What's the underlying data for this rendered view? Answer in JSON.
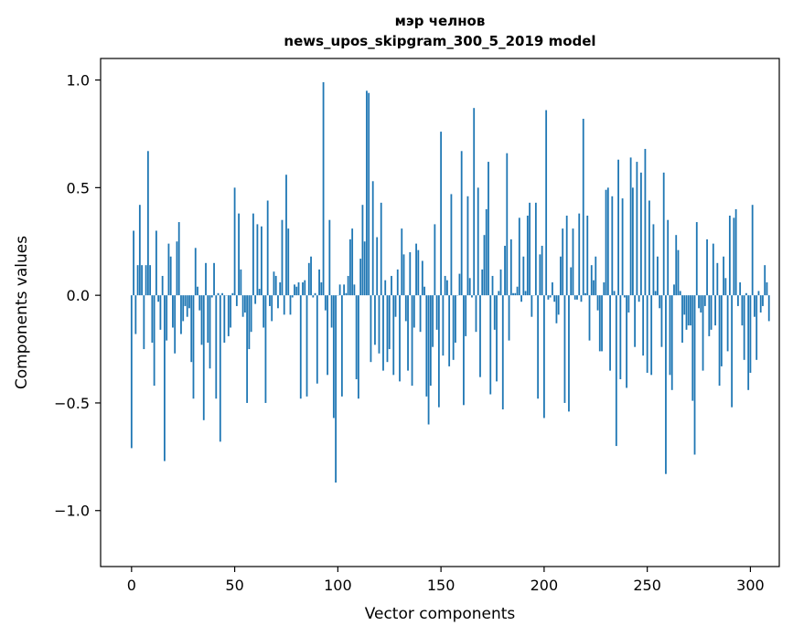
{
  "title": {
    "line1": "мэр челнов",
    "line2": "news_upos_skipgram_300_5_2019 model"
  },
  "chart_data": {
    "type": "bar",
    "xlabel": "Vector components",
    "ylabel": "Components values",
    "xlim": [
      -15,
      314
    ],
    "ylim": [
      -1.26,
      1.1
    ],
    "xticks": [
      0,
      50,
      100,
      150,
      200,
      250,
      300
    ],
    "yticks": [
      -1.0,
      -0.5,
      0.0,
      0.5,
      1.0
    ],
    "ytick_labels": [
      "−1.0",
      "−0.5",
      "0.0",
      "0.5",
      "1.0"
    ],
    "bar_color": "#1f77b4",
    "grid": false,
    "values": [
      -0.71,
      0.3,
      -0.18,
      0.14,
      0.42,
      0.14,
      -0.25,
      0.14,
      0.67,
      0.14,
      -0.22,
      -0.42,
      0.3,
      -0.03,
      -0.16,
      0.09,
      -0.77,
      -0.21,
      0.24,
      0.18,
      -0.15,
      -0.27,
      0.25,
      0.34,
      -0.18,
      -0.12,
      -0.05,
      -0.1,
      -0.06,
      -0.31,
      -0.48,
      0.22,
      0.04,
      -0.07,
      -0.23,
      -0.58,
      0.15,
      -0.22,
      -0.34,
      -0.01,
      0.15,
      -0.48,
      0.01,
      -0.68,
      0.01,
      -0.22,
      0.0,
      -0.19,
      -0.15,
      0.01,
      0.5,
      -0.05,
      0.38,
      0.12,
      -0.1,
      -0.08,
      -0.5,
      -0.25,
      -0.17,
      0.38,
      -0.04,
      0.33,
      0.03,
      0.32,
      -0.15,
      -0.5,
      0.44,
      -0.05,
      -0.12,
      0.11,
      0.09,
      -0.06,
      0.06,
      0.35,
      -0.09,
      0.56,
      0.31,
      -0.09,
      -0.01,
      0.05,
      0.04,
      0.06,
      -0.48,
      0.06,
      0.07,
      -0.47,
      0.15,
      0.18,
      -0.01,
      0.01,
      -0.41,
      0.12,
      0.06,
      0.99,
      -0.07,
      -0.37,
      0.35,
      -0.15,
      -0.57,
      -0.87,
      0.0,
      0.05,
      -0.47,
      0.05,
      0.01,
      0.09,
      0.26,
      0.31,
      0.05,
      -0.39,
      -0.48,
      0.17,
      0.42,
      0.25,
      0.95,
      0.94,
      -0.31,
      0.53,
      -0.23,
      0.27,
      -0.27,
      0.43,
      -0.35,
      0.07,
      -0.31,
      -0.25,
      0.09,
      -0.37,
      -0.1,
      0.12,
      -0.4,
      0.31,
      0.19,
      -0.12,
      -0.35,
      0.2,
      -0.42,
      -0.15,
      0.24,
      0.21,
      -0.17,
      0.16,
      0.04,
      -0.47,
      -0.6,
      -0.42,
      -0.24,
      0.33,
      -0.16,
      -0.52,
      0.76,
      -0.28,
      0.09,
      0.07,
      -0.33,
      0.47,
      -0.3,
      -0.22,
      0.0,
      0.1,
      0.67,
      -0.51,
      -0.19,
      0.46,
      0.08,
      -0.01,
      0.87,
      -0.17,
      0.5,
      -0.38,
      0.12,
      0.28,
      0.4,
      0.62,
      -0.46,
      0.09,
      -0.16,
      -0.4,
      0.02,
      0.12,
      -0.53,
      0.23,
      0.66,
      -0.21,
      0.26,
      0.01,
      0.01,
      0.04,
      0.36,
      -0.03,
      0.18,
      0.02,
      0.37,
      0.43,
      -0.1,
      0.0,
      0.43,
      -0.48,
      0.19,
      0.23,
      -0.57,
      0.86,
      -0.02,
      -0.01,
      0.06,
      -0.03,
      -0.13,
      -0.09,
      0.18,
      0.31,
      -0.5,
      0.37,
      -0.54,
      0.13,
      0.31,
      -0.02,
      -0.02,
      0.38,
      -0.03,
      0.82,
      0.01,
      0.37,
      -0.21,
      0.14,
      0.07,
      0.18,
      -0.07,
      -0.26,
      -0.26,
      0.06,
      0.49,
      0.5,
      -0.35,
      0.46,
      0.02,
      -0.7,
      0.63,
      -0.39,
      0.45,
      -0.01,
      -0.43,
      -0.08,
      0.64,
      0.5,
      -0.24,
      0.62,
      -0.03,
      0.57,
      -0.28,
      0.68,
      -0.36,
      0.44,
      -0.37,
      0.33,
      0.02,
      0.18,
      -0.06,
      -0.24,
      0.57,
      -0.83,
      0.35,
      -0.37,
      -0.44,
      0.05,
      0.28,
      0.21,
      0.02,
      -0.22,
      -0.09,
      -0.16,
      -0.14,
      -0.14,
      -0.49,
      -0.74,
      0.34,
      -0.06,
      -0.08,
      -0.35,
      -0.05,
      0.26,
      -0.19,
      -0.16,
      0.24,
      -0.14,
      0.15,
      -0.42,
      -0.33,
      0.18,
      0.08,
      -0.26,
      0.37,
      -0.52,
      0.36,
      0.4,
      -0.05,
      0.06,
      -0.14,
      -0.3,
      0.01,
      -0.44,
      -0.36,
      0.42,
      -0.1,
      -0.3,
      0.02,
      -0.08,
      -0.05,
      0.14,
      0.06,
      -0.12
    ]
  }
}
